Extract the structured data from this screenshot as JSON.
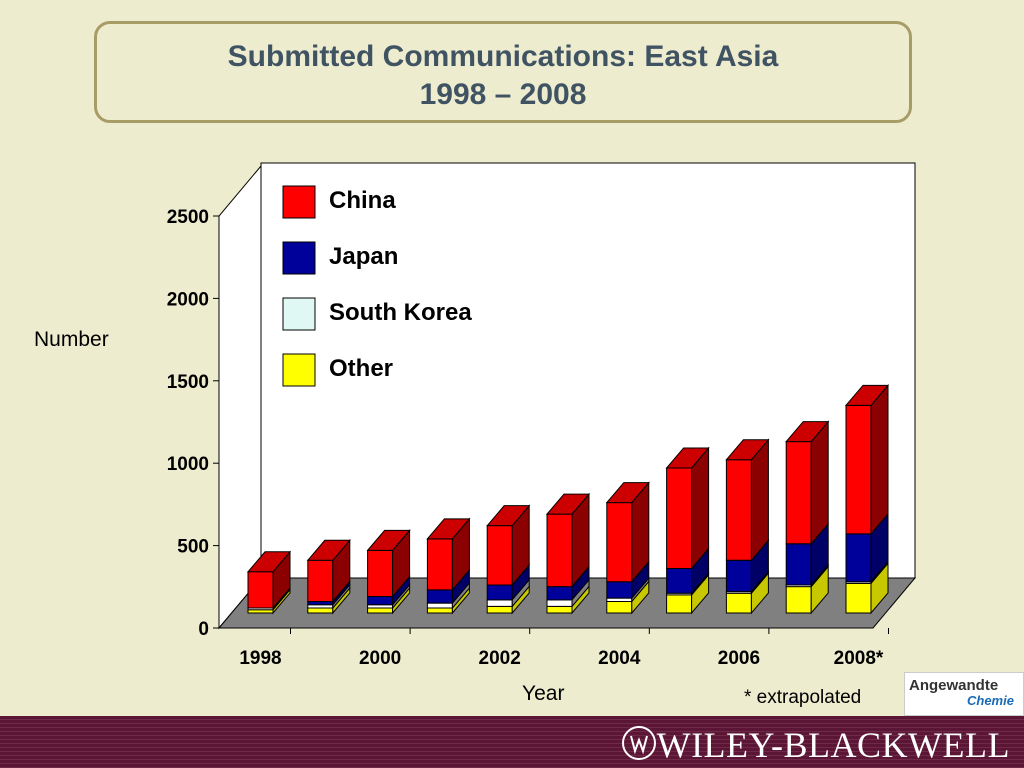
{
  "chart_data": {
    "type": "bar",
    "stacked": true,
    "title": "Submitted Communications: East Asia",
    "subtitle": "1998 – 2008",
    "xlabel": "Year",
    "ylabel": "Number",
    "ylim": [
      0,
      2500
    ],
    "yticks": [
      "0",
      "500",
      "1000",
      "1500",
      "2000",
      "2500"
    ],
    "xtick_labels": [
      "1998",
      "2000",
      "2002",
      "2004",
      "2006",
      "2008*"
    ],
    "categories": [
      "1998",
      "1999",
      "2000",
      "2001",
      "2002",
      "2003",
      "2004",
      "2005",
      "2006",
      "2007",
      "2008"
    ],
    "series": [
      {
        "name": "Other",
        "color": "#ffff00",
        "values": [
          20,
          30,
          30,
          30,
          40,
          40,
          70,
          110,
          120,
          160,
          180
        ]
      },
      {
        "name": "South Korea",
        "color": "#ffffff",
        "values": [
          10,
          20,
          20,
          30,
          40,
          40,
          20,
          10,
          10,
          10,
          10
        ]
      },
      {
        "name": "Japan",
        "color": "#00009a",
        "values": [
          0,
          20,
          50,
          80,
          90,
          80,
          100,
          150,
          190,
          250,
          290
        ]
      },
      {
        "name": "China",
        "color": "#ff0000",
        "values": [
          220,
          250,
          280,
          310,
          360,
          440,
          480,
          610,
          610,
          620,
          780
        ]
      }
    ],
    "legend_order": [
      "China",
      "Japan",
      "South Korea",
      "Other"
    ],
    "legend_position": "top-left",
    "annotation": "* extrapolated",
    "grid": false
  },
  "footer": {
    "publisher": "WILEY-BLACKWELL",
    "journal_logo_line1": "Angewandte",
    "journal_logo_line2": "Chemie"
  }
}
